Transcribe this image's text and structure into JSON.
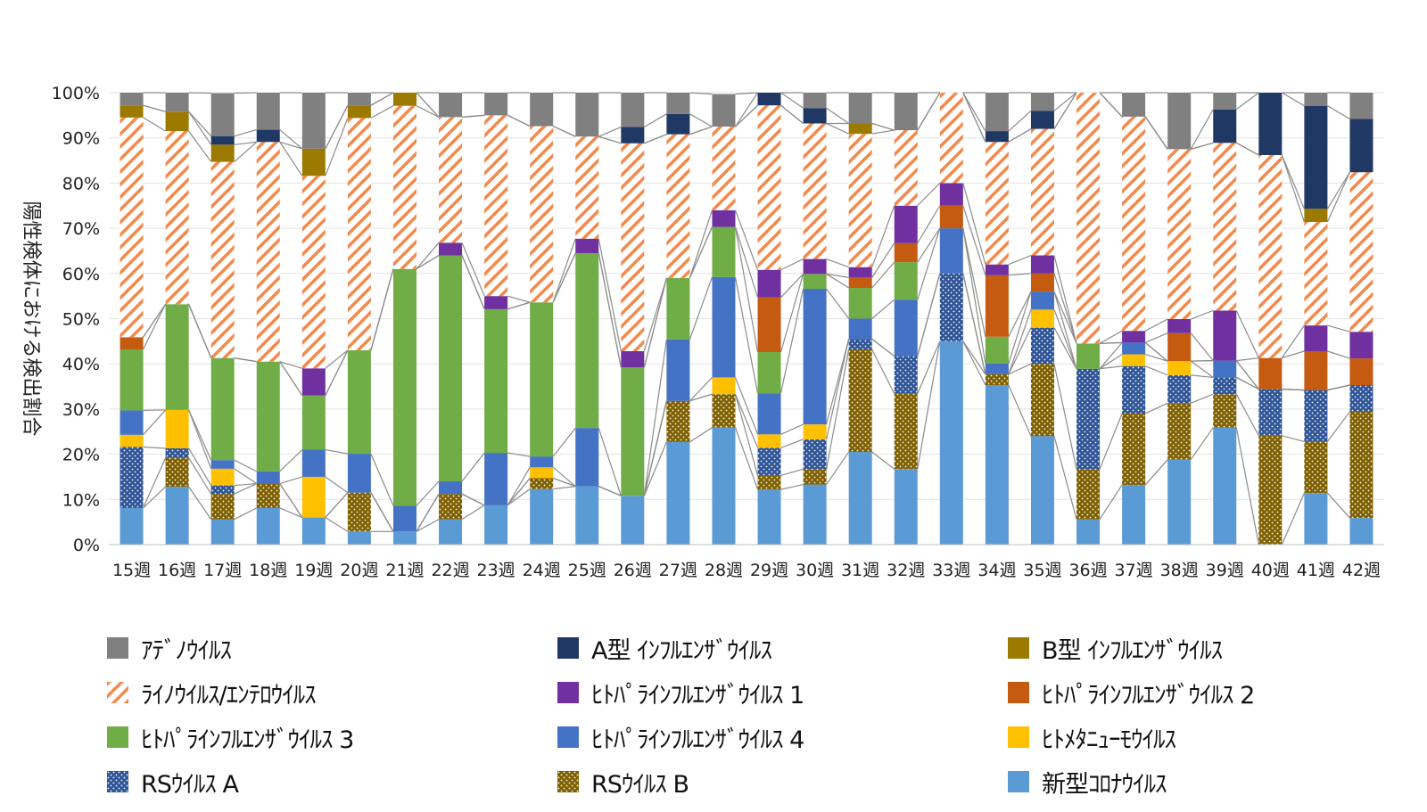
{
  "chart_data": {
    "type": "bar",
    "stacked": true,
    "title": "",
    "xlabel": "",
    "ylabel": "陽性検体における検出割合",
    "ylim": [
      0,
      100
    ],
    "y_ticks": [
      "0%",
      "10%",
      "20%",
      "30%",
      "40%",
      "50%",
      "60%",
      "70%",
      "80%",
      "90%",
      "100%"
    ],
    "categories": [
      "15週",
      "16週",
      "17週",
      "18週",
      "19週",
      "20週",
      "21週",
      "22週",
      "23週",
      "24週",
      "25週",
      "26週",
      "27週",
      "28週",
      "29週",
      "30週",
      "31週",
      "32週",
      "33週",
      "34週",
      "35週",
      "36週",
      "37週",
      "38週",
      "39週",
      "40週",
      "41週",
      "42週"
    ],
    "series": [
      {
        "name": "新型ｺﾛﾅｳｲﾙｽ",
        "color": "#5b9bd5",
        "pattern": "solid",
        "values": [
          8.1,
          12.8,
          5.6,
          8.1,
          6.0,
          2.9,
          2.9,
          5.6,
          8.7,
          12.3,
          12.9,
          10.8,
          22.7,
          25.9,
          12.2,
          13.3,
          20.5,
          16.7,
          45.0,
          35.3,
          24.0,
          5.6,
          13.2,
          18.8,
          25.9,
          0,
          11.4,
          5.9
        ]
      },
      {
        "name": "RSｳｲﾙｽ B",
        "color": "#7f6000",
        "pattern": "dots",
        "values": [
          0,
          6.4,
          5.6,
          5.4,
          0,
          8.6,
          0,
          5.6,
          0,
          2.4,
          0,
          0,
          9.1,
          7.4,
          3.1,
          3.4,
          22.7,
          16.7,
          0,
          2.4,
          16.0,
          11.1,
          15.8,
          12.5,
          7.4,
          24.1,
          11.4,
          23.5
        ]
      },
      {
        "name": "RSｳｲﾙｽ A",
        "color": "#2f5597",
        "pattern": "dots",
        "values": [
          13.5,
          2.1,
          1.9,
          0,
          0,
          0,
          0,
          0,
          0,
          0,
          0,
          0,
          0,
          0,
          6.1,
          6.6,
          2.3,
          8.3,
          15.0,
          0,
          8.0,
          22.2,
          10.5,
          6.2,
          3.7,
          10.3,
          11.4,
          5.9
        ]
      },
      {
        "name": "ﾋﾄﾒﾀﾆｭｰﾓｳｲﾙｽ",
        "color": "#ffc000",
        "pattern": "solid",
        "values": [
          2.7,
          8.5,
          3.7,
          0,
          9.0,
          0,
          0,
          0,
          0,
          2.4,
          0,
          0,
          0,
          3.7,
          3.0,
          3.3,
          0,
          0,
          0,
          0,
          4.0,
          0,
          2.6,
          3.1,
          0,
          0,
          0,
          0
        ]
      },
      {
        "name": "ﾋﾄﾊﾟﾗｲﾝﾌﾙｴﾝｻﾞｳｲﾙｽ 4",
        "color": "#4472c4",
        "pattern": "solid",
        "values": [
          5.4,
          0,
          1.9,
          2.7,
          6.0,
          8.6,
          5.7,
          2.8,
          11.6,
          2.4,
          12.9,
          0,
          13.6,
          22.2,
          9.1,
          30.0,
          4.5,
          12.5,
          10.0,
          2.4,
          4.0,
          0,
          2.6,
          0,
          3.7,
          0,
          0,
          0
        ]
      },
      {
        "name": "ﾋﾄﾊﾟﾗｲﾝﾌﾙｴﾝｻﾞｳｲﾙｽ 3",
        "color": "#70ad47",
        "pattern": "solid",
        "values": [
          13.5,
          23.4,
          22.6,
          24.3,
          12.0,
          22.9,
          52.4,
          50.0,
          31.8,
          34.1,
          38.7,
          28.4,
          13.6,
          11.1,
          9.1,
          3.3,
          6.8,
          8.3,
          0,
          5.9,
          0,
          5.6,
          0,
          0,
          0,
          0,
          0,
          0
        ]
      },
      {
        "name": "ﾋﾄﾊﾟﾗｲﾝﾌﾙｴﾝｻﾞｳｲﾙｽ 2",
        "color": "#c55a11",
        "pattern": "solid",
        "values": [
          2.7,
          0,
          0,
          0,
          0,
          0,
          0,
          0,
          0,
          0,
          0,
          0,
          0,
          0,
          12.1,
          0,
          2.3,
          4.2,
          5.0,
          13.6,
          4.0,
          0,
          0,
          6.2,
          0,
          6.9,
          8.6,
          5.9
        ]
      },
      {
        "name": "ﾋﾄﾊﾟﾗｲﾝﾌﾙｴﾝｻﾞｳｲﾙｽ 1",
        "color": "#7030a0",
        "pattern": "solid",
        "values": [
          0,
          0,
          0,
          0,
          6.0,
          0,
          0,
          2.8,
          2.9,
          0,
          3.2,
          3.6,
          0,
          3.7,
          6.1,
          3.3,
          2.3,
          8.3,
          5.0,
          2.4,
          4.0,
          0,
          2.6,
          3.1,
          11.1,
          0,
          5.7,
          5.9
        ]
      },
      {
        "name": "ﾗｲﾉｳｲﾙｽ/ｴﾝﾃﾛｳｲﾙｽ",
        "color": "#f4894b",
        "pattern": "stripes",
        "values": [
          48.6,
          38.3,
          43.4,
          48.6,
          42.6,
          51.4,
          36.1,
          27.8,
          40.0,
          39.0,
          22.6,
          46.0,
          31.8,
          18.5,
          36.4,
          30.0,
          29.5,
          16.7,
          20.0,
          27.1,
          28.0,
          55.5,
          47.4,
          37.6,
          37.1,
          44.9,
          22.9,
          35.3
        ]
      },
      {
        "name": "B型 ｲﾝﾌﾙｴﾝｻﾞｳｲﾙｽ",
        "color": "#9c7a00",
        "pattern": "solid",
        "values": [
          2.7,
          4.3,
          3.8,
          0,
          6.0,
          2.8,
          2.9,
          0,
          0,
          0,
          0,
          0,
          0,
          0,
          0,
          0,
          2.3,
          0,
          0,
          0,
          0,
          0,
          0,
          0,
          0,
          0,
          2.9,
          0
        ]
      },
      {
        "name": "A型 ｲﾝﾌﾙｴﾝｻﾞｳｲﾙｽ",
        "color": "#203864",
        "pattern": "solid",
        "values": [
          0,
          0,
          1.9,
          2.7,
          0,
          0,
          0,
          0,
          0,
          0,
          0,
          3.6,
          4.5,
          0,
          3.0,
          3.4,
          0,
          0,
          0,
          2.4,
          4.0,
          0,
          0,
          0,
          7.4,
          13.8,
          22.8,
          11.8
        ]
      },
      {
        "name": "ｱﾃﾞﾉｳｲﾙｽ",
        "color": "#808080",
        "pattern": "solid",
        "values": [
          2.8,
          4.2,
          9.5,
          8.2,
          12.4,
          2.8,
          0,
          5.4,
          5.0,
          7.4,
          9.7,
          10.6,
          4.7,
          7.2,
          0,
          3.4,
          6.8,
          8.3,
          0,
          9.5,
          4.0,
          0,
          5.3,
          12.5,
          3.7,
          0,
          2.9,
          5.8
        ]
      }
    ],
    "legend_position": "bottom",
    "legend_order": [
      "ｱﾃﾞﾉｳｲﾙｽ",
      "A型 ｲﾝﾌﾙｴﾝｻﾞｳｲﾙｽ",
      "B型 ｲﾝﾌﾙｴﾝｻﾞｳｲﾙｽ",
      "ﾗｲﾉｳｲﾙｽ/ｴﾝﾃﾛｳｲﾙｽ",
      "ﾋﾄﾊﾟﾗｲﾝﾌﾙｴﾝｻﾞｳｲﾙｽ 1",
      "ﾋﾄﾊﾟﾗｲﾝﾌﾙｴﾝｻﾞｳｲﾙｽ 2",
      "ﾋﾄﾊﾟﾗｲﾝﾌﾙｴﾝｻﾞｳｲﾙｽ 3",
      "ﾋﾄﾊﾟﾗｲﾝﾌﾙｴﾝｻﾞｳｲﾙｽ 4",
      "ﾋﾄﾒﾀﾆｭｰﾓｳｲﾙｽ",
      "RSｳｲﾙｽ A",
      "RSｳｲﾙｽ B",
      "新型ｺﾛﾅｳｲﾙｽ"
    ],
    "series_lines": true,
    "grid": true
  }
}
